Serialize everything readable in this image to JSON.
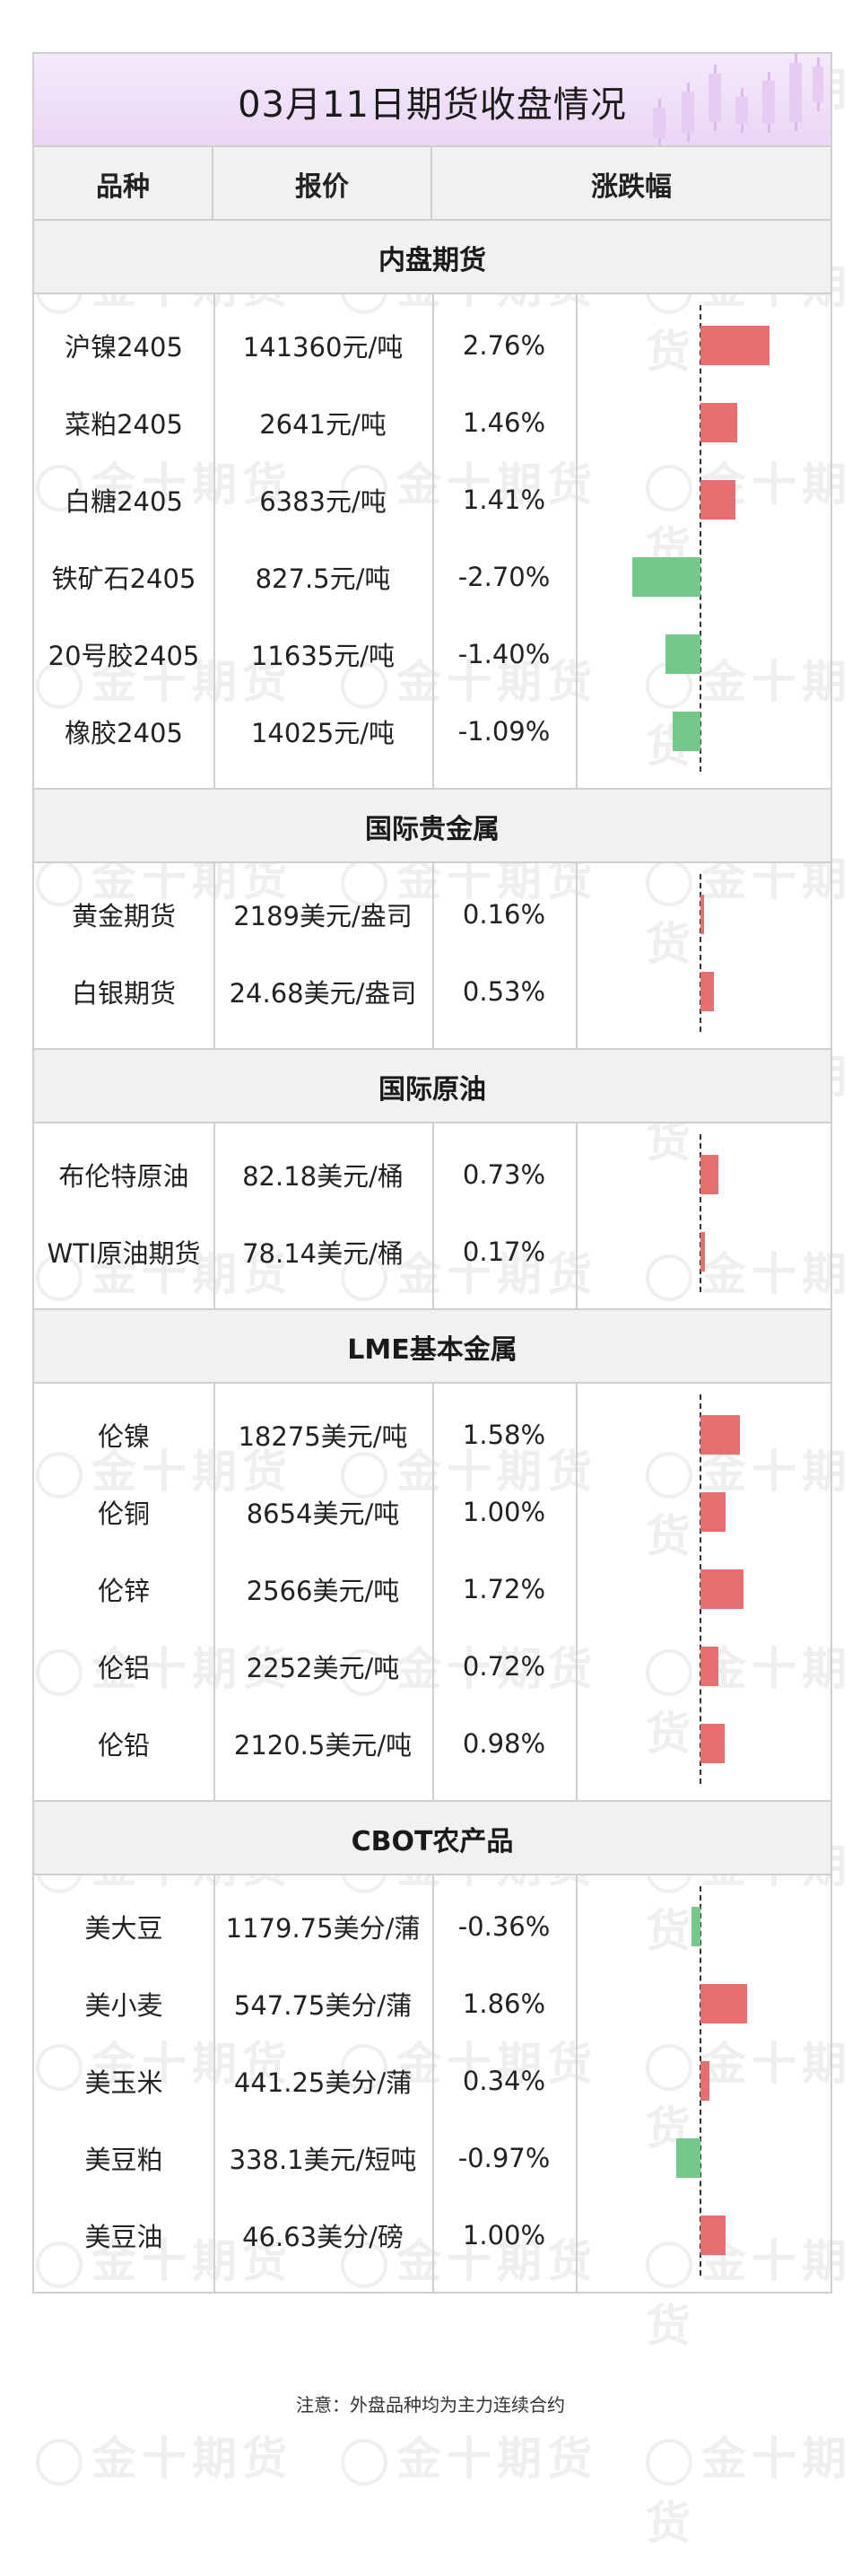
{
  "title": "03月11日期货收盘情况",
  "watermark_text": "金十期货",
  "columns": [
    "品种",
    "报价",
    "涨跌幅"
  ],
  "sections": [
    {
      "name": "内盘期货",
      "rows": [
        {
          "name": "沪镍2405",
          "price": "141360元/吨",
          "change": "2.76%",
          "value": 2.76
        },
        {
          "name": "菜粕2405",
          "price": "2641元/吨",
          "change": "1.46%",
          "value": 1.46
        },
        {
          "name": "白糖2405",
          "price": "6383元/吨",
          "change": "1.41%",
          "value": 1.41
        },
        {
          "name": "铁矿石2405",
          "price": "827.5元/吨",
          "change": "-2.70%",
          "value": -2.7
        },
        {
          "name": "20号胶2405",
          "price": "11635元/吨",
          "change": "-1.40%",
          "value": -1.4
        },
        {
          "name": "橡胶2405",
          "price": "14025元/吨",
          "change": "-1.09%",
          "value": -1.09
        }
      ]
    },
    {
      "name": "国际贵金属",
      "rows": [
        {
          "name": "黄金期货",
          "price": "2189美元/盎司",
          "change": "0.16%",
          "value": 0.16
        },
        {
          "name": "白银期货",
          "price": "24.68美元/盎司",
          "change": "0.53%",
          "value": 0.53
        }
      ]
    },
    {
      "name": "国际原油",
      "rows": [
        {
          "name": "布伦特原油",
          "price": "82.18美元/桶",
          "change": "0.73%",
          "value": 0.73
        },
        {
          "name": "WTI原油期货",
          "price": "78.14美元/桶",
          "change": "0.17%",
          "value": 0.17
        }
      ]
    },
    {
      "name": "LME基本金属",
      "rows": [
        {
          "name": "伦镍",
          "price": "18275美元/吨",
          "change": "1.58%",
          "value": 1.58
        },
        {
          "name": "伦铜",
          "price": "8654美元/吨",
          "change": "1.00%",
          "value": 1.0
        },
        {
          "name": "伦锌",
          "price": "2566美元/吨",
          "change": "1.72%",
          "value": 1.72
        },
        {
          "name": "伦铝",
          "price": "2252美元/吨",
          "change": "0.72%",
          "value": 0.72
        },
        {
          "name": "伦铅",
          "price": "2120.5美元/吨",
          "change": "0.98%",
          "value": 0.98
        }
      ]
    },
    {
      "name": "CBOT农产品",
      "rows": [
        {
          "name": "美大豆",
          "price": "1179.75美分/蒲",
          "change": "-0.36%",
          "value": -0.36
        },
        {
          "name": "美小麦",
          "price": "547.75美分/蒲",
          "change": "1.86%",
          "value": 1.86
        },
        {
          "name": "美玉米",
          "price": "441.25美分/蒲",
          "change": "0.34%",
          "value": 0.34
        },
        {
          "name": "美豆粕",
          "price": "338.1美元/短吨",
          "change": "-0.97%",
          "value": -0.97
        },
        {
          "name": "美豆油",
          "price": "46.63美分/磅",
          "change": "1.00%",
          "value": 1.0
        }
      ]
    }
  ],
  "note": "注意：外盘品种均为主力连续合约",
  "colors": {
    "up": "#e66f72",
    "down": "#74c98a",
    "up_text": "#d0262e",
    "down_text": "#1f8a3a"
  }
}
